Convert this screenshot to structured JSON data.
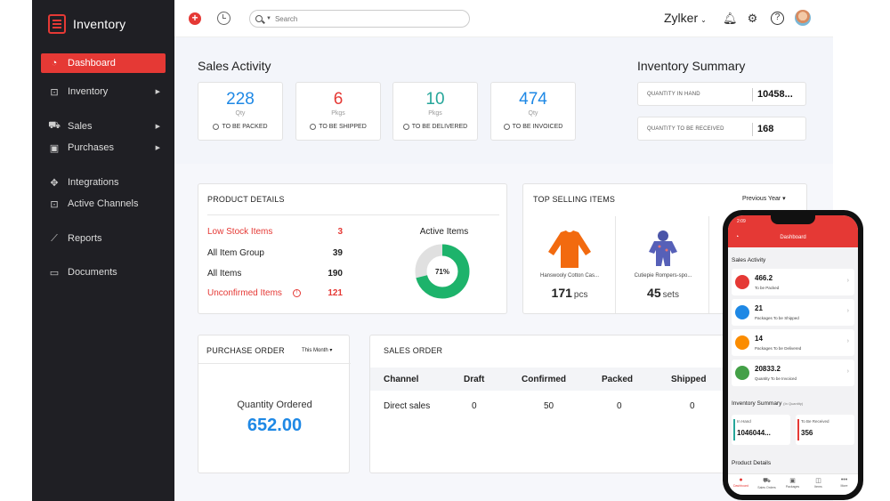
{
  "sidebar": {
    "brand": "Inventory",
    "items": [
      {
        "label": "Dashboard",
        "icon": "dashboard-icon",
        "active": true
      },
      {
        "label": "Inventory",
        "icon": "inventory-icon",
        "submenu": true
      },
      {
        "label": "Sales",
        "icon": "cart-icon",
        "submenu": true
      },
      {
        "label": "Purchases",
        "icon": "bag-icon",
        "submenu": true
      },
      {
        "label": "Integrations",
        "icon": "puzzle-icon"
      },
      {
        "label": "Active Channels",
        "icon": "channels-icon"
      },
      {
        "label": "Reports",
        "icon": "chart-icon"
      },
      {
        "label": "Documents",
        "icon": "folder-icon"
      }
    ]
  },
  "topbar": {
    "search_placeholder": "Search",
    "org_name": "Zylker"
  },
  "sales_activity": {
    "title": "Sales Activity",
    "cards": [
      {
        "value": "228",
        "unit": "Qty",
        "label": "TO BE PACKED",
        "color": "#1e88e5"
      },
      {
        "value": "6",
        "unit": "Pkgs",
        "label": "TO BE SHIPPED",
        "color": "#e53935"
      },
      {
        "value": "10",
        "unit": "Pkgs",
        "label": "TO BE DELIVERED",
        "color": "#26a69a"
      },
      {
        "value": "474",
        "unit": "Qty",
        "label": "TO BE INVOICED",
        "color": "#1e88e5"
      }
    ]
  },
  "inventory_summary": {
    "title": "Inventory Summary",
    "rows": [
      {
        "label": "QUANTITY IN HAND",
        "value": "10458..."
      },
      {
        "label": "QUANTITY TO BE RECEIVED",
        "value": "168"
      }
    ]
  },
  "product_details": {
    "title": "PRODUCT DETAILS",
    "rows": [
      {
        "label": "Low Stock Items",
        "value": "3",
        "highlight": true
      },
      {
        "label": "All Item Group",
        "value": "39",
        "highlight": false
      },
      {
        "label": "All Items",
        "value": "190",
        "highlight": false
      },
      {
        "label": "Unconfirmed Items",
        "value": "121",
        "highlight": true
      }
    ],
    "active_items_label": "Active Items",
    "active_items_percent": 71,
    "active_items_text": "71%"
  },
  "top_selling": {
    "title": "TOP SELLING ITEMS",
    "period": "Previous Year",
    "items": [
      {
        "name": "Hanswooly Cotton Cas...",
        "qty": "171",
        "unit": "pcs",
        "icon": "orange-sweater-icon"
      },
      {
        "name": "Cutiepie Rompers-spo...",
        "qty": "45",
        "unit": "sets",
        "icon": "baby-romper-icon"
      }
    ]
  },
  "purchase_order": {
    "title": "PURCHASE ORDER",
    "period": "This Month",
    "qty_label": "Quantity Ordered",
    "qty_value": "652.00"
  },
  "sales_order": {
    "title": "SALES ORDER",
    "columns": [
      "Channel",
      "Draft",
      "Confirmed",
      "Packed",
      "Shipped"
    ],
    "rows": [
      [
        "Direct sales",
        "0",
        "50",
        "0",
        "0"
      ]
    ]
  },
  "phone": {
    "time": "2:09",
    "header": "Dashboard",
    "sales_activity_title": "Sales Activity",
    "cards": [
      {
        "value": "466.2",
        "label": "To be Packed",
        "color": "#e53935"
      },
      {
        "value": "21",
        "label": "Packages To be Shipped",
        "color": "#1e88e5"
      },
      {
        "value": "14",
        "label": "Packages To be Delivered",
        "color": "#fb8c00"
      },
      {
        "value": "20833.2",
        "label": "Quantity To be Invoiced",
        "color": "#43a047"
      }
    ],
    "inventory_title": "Inventory Summary",
    "inventory_note": "(In Quantity)",
    "inventory": [
      {
        "label": "In Hand",
        "value": "1046044..."
      },
      {
        "label": "To Be Received",
        "value": "356"
      }
    ],
    "product_details_title": "Product Details",
    "tabs": [
      "Dashboard",
      "Sales Orders",
      "Packages",
      "Items",
      "More"
    ]
  },
  "colors": {
    "accent": "#e53935",
    "sidebar_bg": "#1f1f24",
    "donut_green": "#1db36b",
    "po_blue": "#1e88e5"
  }
}
